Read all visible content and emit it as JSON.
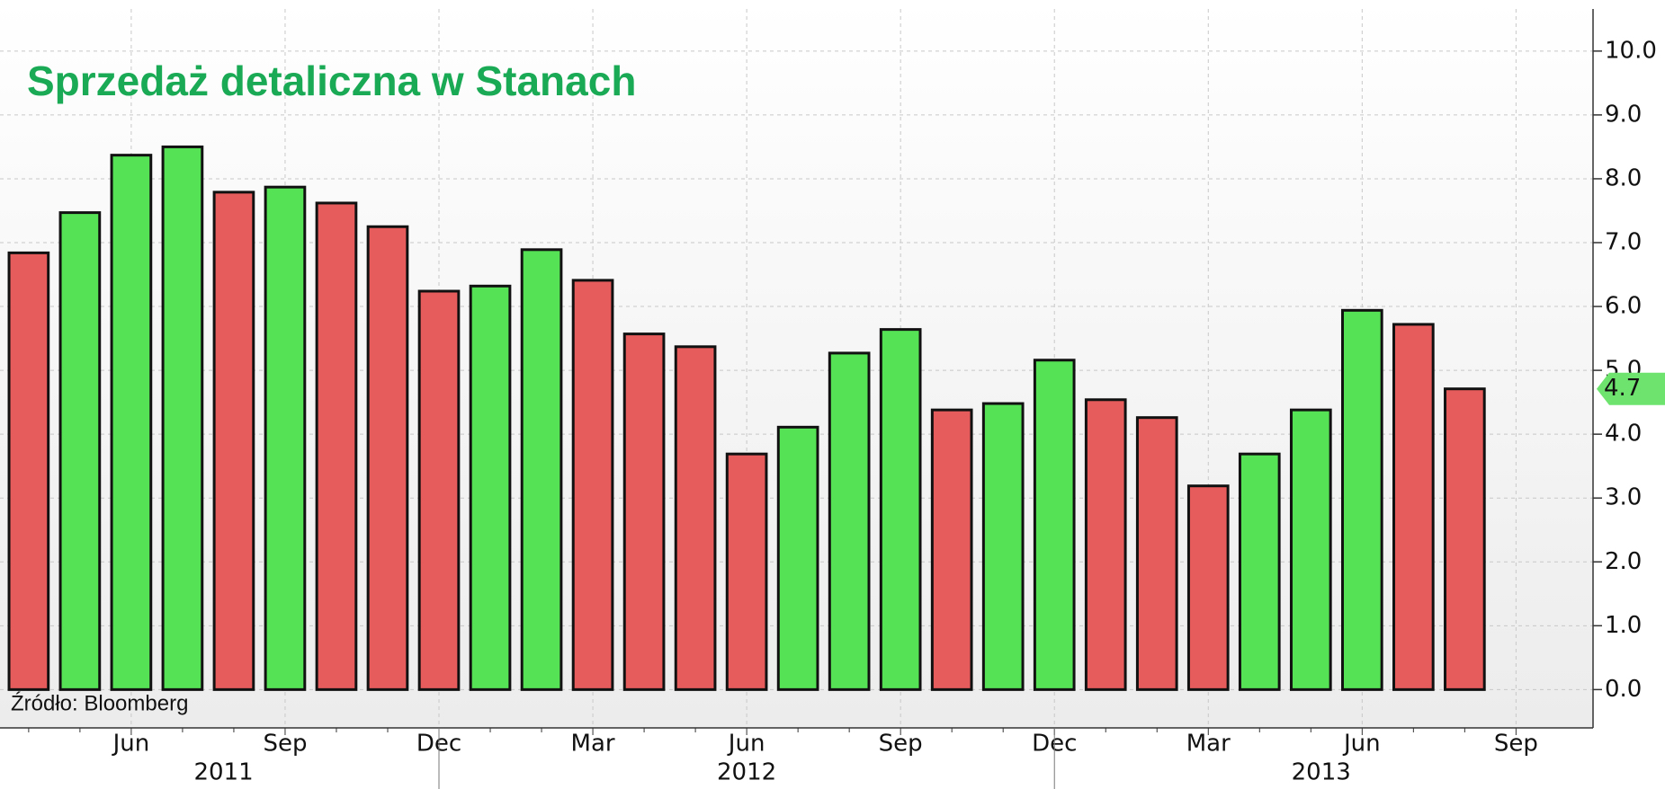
{
  "chart_data": {
    "type": "bar",
    "title": "Sprzedaż detaliczna w Stanach",
    "source": "Źródło: Bloomberg",
    "categories": [
      null,
      null,
      "Jun",
      null,
      null,
      "Sep",
      null,
      null,
      "Dec",
      null,
      null,
      "Mar",
      null,
      null,
      "Jun",
      null,
      null,
      "Sep",
      null,
      null,
      "Dec",
      null,
      null,
      "Mar",
      null,
      null,
      "Jun",
      null,
      null
    ],
    "x_end_label": "Sep",
    "years": [
      "2011",
      "2012",
      "2013"
    ],
    "values": [
      6.84,
      7.47,
      8.37,
      8.5,
      7.79,
      7.87,
      7.62,
      7.25,
      6.24,
      6.32,
      6.89,
      6.41,
      5.57,
      5.37,
      3.69,
      4.11,
      5.27,
      5.64,
      4.38,
      4.48,
      5.16,
      4.54,
      4.26,
      3.19,
      3.69,
      4.38,
      5.94,
      5.72,
      4.71
    ],
    "colors": [
      "#e65b5b",
      "#55e255",
      "#55e255",
      "#55e255",
      "#e65b5b",
      "#55e255",
      "#e65b5b",
      "#e65b5b",
      "#e65b5b",
      "#55e255",
      "#55e255",
      "#e65b5b",
      "#e65b5b",
      "#e65b5b",
      "#e65b5b",
      "#55e255",
      "#55e255",
      "#55e255",
      "#e65b5b",
      "#55e255",
      "#55e255",
      "#e65b5b",
      "#e65b5b",
      "#e65b5b",
      "#55e255",
      "#55e255",
      "#55e255",
      "#e65b5b",
      "#e65b5b"
    ],
    "last_value_label": "4.7",
    "last_value_color": "#6ee36e",
    "ylim": [
      -0.6,
      10.8
    ],
    "yticks": [
      {
        "value": 0,
        "label": "0.0"
      },
      {
        "value": 1,
        "label": "1.0"
      },
      {
        "value": 2,
        "label": "2.0"
      },
      {
        "value": 3,
        "label": "3.0"
      },
      {
        "value": 4,
        "label": "4.0"
      },
      {
        "value": 5,
        "label": "5.0"
      },
      {
        "value": 6,
        "label": "6.0"
      },
      {
        "value": 7,
        "label": "7.0"
      },
      {
        "value": 8,
        "label": "8.0"
      },
      {
        "value": 9,
        "label": "9.0"
      },
      {
        "value": 10,
        "label": "10.0"
      }
    ],
    "grid": true
  }
}
